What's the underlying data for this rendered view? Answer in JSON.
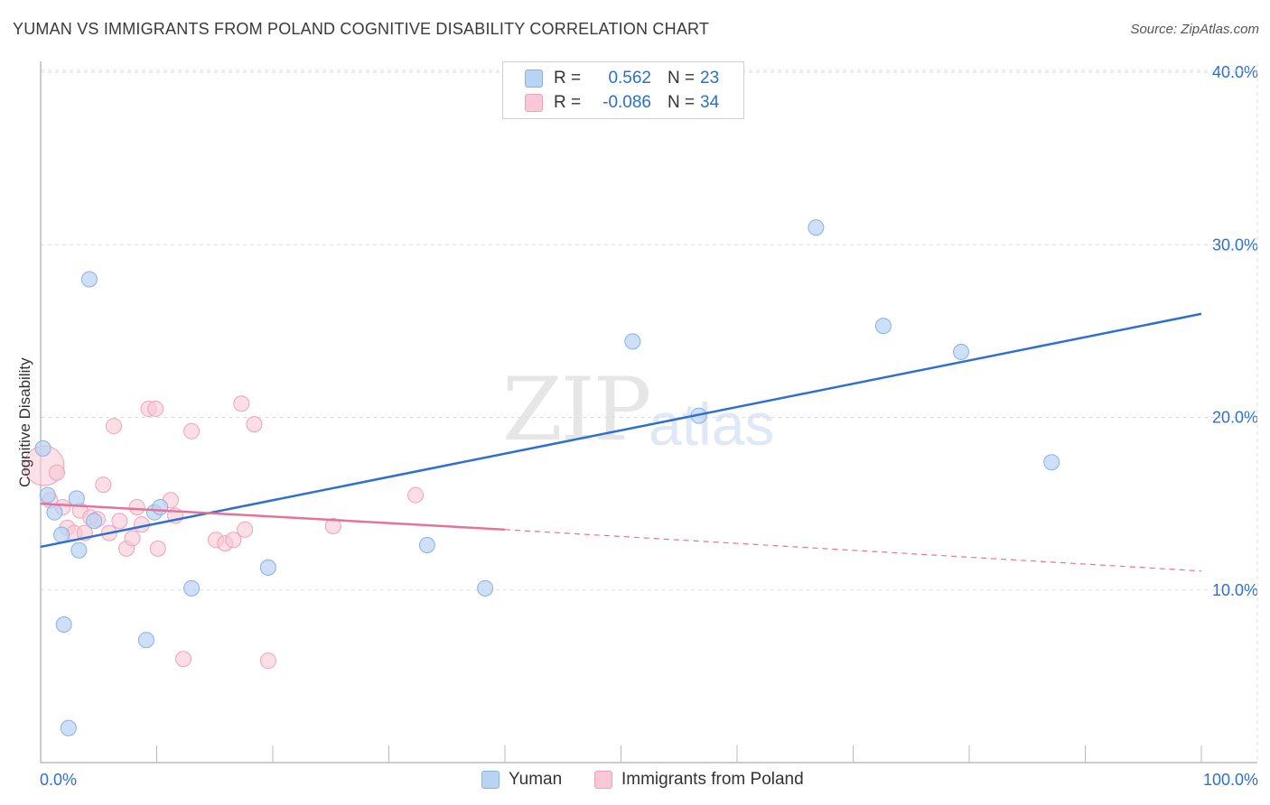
{
  "title": "YUMAN VS IMMIGRANTS FROM POLAND COGNITIVE DISABILITY CORRELATION CHART",
  "source": "Source: ZipAtlas.com",
  "watermark": {
    "zip": "ZIP",
    "atlas": "atlas"
  },
  "legend": {
    "rows": [
      {
        "r_label": "R =",
        "r_value": "0.562",
        "n_label": "N =",
        "n_value": "23"
      },
      {
        "r_label": "R =",
        "r_value": "-0.086",
        "n_label": "N =",
        "n_value": "34"
      }
    ]
  },
  "bottom_legend": {
    "series1": "Yuman",
    "series2": "Immigrants from Poland"
  },
  "colors": {
    "yuman_fill": "#b9d3f3",
    "yuman_stroke": "#8ab0e0",
    "yuman_line": "#2f6fd0",
    "poland_fill": "#f9c8d6",
    "poland_stroke": "#eea2b9",
    "poland_line": "#e8719a",
    "grid": "#dddddd",
    "tick_label": "#2f6fd0"
  },
  "chart_data": {
    "type": "scatter",
    "title": "YUMAN VS IMMIGRANTS FROM POLAND COGNITIVE DISABILITY CORRELATION CHART",
    "xlabel": "",
    "ylabel": "Cognitive Disability",
    "xlim": [
      0,
      100
    ],
    "ylim": [
      0,
      40
    ],
    "y_ticks": [
      10,
      20,
      30,
      40
    ],
    "y_tick_labels": [
      "10.0%",
      "20.0%",
      "30.0%",
      "40.0%"
    ],
    "x_tick_labels": [
      "0.0%",
      "100.0%"
    ],
    "series": [
      {
        "name": "Yuman",
        "points": [
          [
            0.2,
            18.2
          ],
          [
            0.6,
            15.5
          ],
          [
            1.2,
            14.5
          ],
          [
            1.8,
            13.2
          ],
          [
            2.0,
            8.0
          ],
          [
            2.4,
            2.0
          ],
          [
            3.1,
            15.3
          ],
          [
            3.3,
            12.3
          ],
          [
            4.2,
            28.0
          ],
          [
            4.6,
            14.0
          ],
          [
            9.1,
            7.1
          ],
          [
            9.8,
            14.5
          ],
          [
            10.3,
            14.8
          ],
          [
            13.0,
            10.1
          ],
          [
            19.6,
            11.3
          ],
          [
            33.3,
            12.6
          ],
          [
            38.3,
            10.1
          ],
          [
            51.0,
            24.4
          ],
          [
            56.7,
            20.1
          ],
          [
            66.8,
            31.0
          ],
          [
            72.6,
            25.3
          ],
          [
            79.3,
            23.8
          ],
          [
            87.1,
            17.4
          ]
        ],
        "trend": {
          "x": [
            0,
            100
          ],
          "y": [
            12.5,
            26.0
          ],
          "style": "solid"
        }
      },
      {
        "name": "Immigrants from Poland",
        "points": [
          [
            0.3,
            17.2
          ],
          [
            0.8,
            15.2
          ],
          [
            1.4,
            16.8
          ],
          [
            1.9,
            14.8
          ],
          [
            2.3,
            13.6
          ],
          [
            2.9,
            13.3
          ],
          [
            3.4,
            14.6
          ],
          [
            3.8,
            13.3
          ],
          [
            4.3,
            14.2
          ],
          [
            4.9,
            14.1
          ],
          [
            5.4,
            16.1
          ],
          [
            5.9,
            13.3
          ],
          [
            6.3,
            19.5
          ],
          [
            6.8,
            14.0
          ],
          [
            7.4,
            12.4
          ],
          [
            7.9,
            13.0
          ],
          [
            8.3,
            14.8
          ],
          [
            8.7,
            13.8
          ],
          [
            9.3,
            20.5
          ],
          [
            9.9,
            20.5
          ],
          [
            10.1,
            12.4
          ],
          [
            11.2,
            15.2
          ],
          [
            11.6,
            14.3
          ],
          [
            12.3,
            6.0
          ],
          [
            13.0,
            19.2
          ],
          [
            15.1,
            12.9
          ],
          [
            15.9,
            12.7
          ],
          [
            16.6,
            12.9
          ],
          [
            17.3,
            20.8
          ],
          [
            17.6,
            13.5
          ],
          [
            18.4,
            19.6
          ],
          [
            19.6,
            5.9
          ],
          [
            25.2,
            13.7
          ],
          [
            32.3,
            15.5
          ]
        ],
        "trend": {
          "x": [
            0,
            40,
            100
          ],
          "y": [
            15.0,
            13.5,
            11.1
          ],
          "style": "solid-then-dashed",
          "solid_until_x": 40
        }
      }
    ]
  }
}
